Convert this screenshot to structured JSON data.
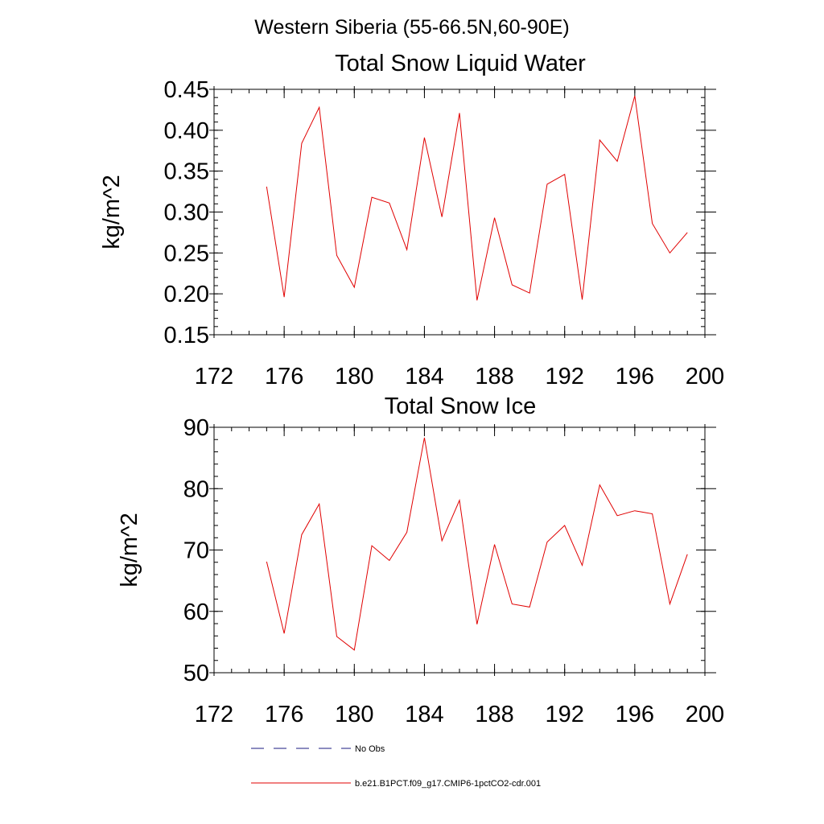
{
  "figure": {
    "suptitle": "Western Siberia (55-66.5N,60-90E)"
  },
  "legend": {
    "entries": [
      {
        "label": "No Obs",
        "style": "dashed",
        "color": "#1a1a80"
      },
      {
        "label": "b.e21.B1PCT.f09_g17.CMIP6-1pctCO2-cdr.001",
        "style": "solid",
        "color": "#e00000"
      }
    ]
  },
  "chart_data": [
    {
      "type": "line",
      "title": "Total Snow Liquid Water",
      "xlabel": "",
      "ylabel": "kg/m^2",
      "xlim": [
        172,
        200
      ],
      "ylim": [
        0.15,
        0.45
      ],
      "xticks": [
        172,
        176,
        180,
        184,
        188,
        192,
        196,
        200
      ],
      "xtick_labels": [
        "172",
        "176",
        "180",
        "184",
        "188",
        "192",
        "196",
        "200"
      ],
      "xminor": 1,
      "yticks": [
        0.15,
        0.2,
        0.25,
        0.3,
        0.35,
        0.4,
        0.45
      ],
      "ytick_labels": [
        "0.15",
        "0.20",
        "0.25",
        "0.30",
        "0.35",
        "0.40",
        "0.45"
      ],
      "yminor": 0.01,
      "grid": false,
      "x": [
        175,
        176,
        177,
        178,
        179,
        180,
        181,
        182,
        183,
        184,
        185,
        186,
        187,
        188,
        189,
        190,
        191,
        192,
        193,
        194,
        195,
        196,
        197,
        198,
        199
      ],
      "series": [
        {
          "name": "b.e21.B1PCT.f09_g17.CMIP6-1pctCO2-cdr.001",
          "color": "#e00000",
          "values": [
            0.331,
            0.196,
            0.384,
            0.428,
            0.247,
            0.208,
            0.318,
            0.311,
            0.254,
            0.391,
            0.294,
            0.421,
            0.192,
            0.293,
            0.211,
            0.201,
            0.334,
            0.346,
            0.193,
            0.388,
            0.362,
            0.442,
            0.286,
            0.25,
            0.275
          ]
        }
      ]
    },
    {
      "type": "line",
      "title": "Total Snow Ice",
      "xlabel": "",
      "ylabel": "kg/m^2",
      "xlim": [
        172,
        200
      ],
      "ylim": [
        50,
        90
      ],
      "xticks": [
        172,
        176,
        180,
        184,
        188,
        192,
        196,
        200
      ],
      "xtick_labels": [
        "172",
        "176",
        "180",
        "184",
        "188",
        "192",
        "196",
        "200"
      ],
      "xminor": 1,
      "yticks": [
        50,
        60,
        70,
        80,
        90
      ],
      "ytick_labels": [
        "50",
        "60",
        "70",
        "80",
        "90"
      ],
      "yminor": 2,
      "grid": false,
      "x": [
        175,
        176,
        177,
        178,
        179,
        180,
        181,
        182,
        183,
        184,
        185,
        186,
        187,
        188,
        189,
        190,
        191,
        192,
        193,
        194,
        195,
        196,
        197,
        198,
        199
      ],
      "series": [
        {
          "name": "b.e21.B1PCT.f09_g17.CMIP6-1pctCO2-cdr.001",
          "color": "#e00000",
          "values": [
            68.1,
            56.4,
            72.5,
            77.5,
            55.9,
            53.7,
            70.7,
            68.3,
            72.9,
            88.3,
            71.5,
            78.1,
            57.9,
            70.9,
            61.2,
            60.7,
            71.3,
            74.0,
            67.5,
            80.6,
            75.6,
            76.4,
            75.9,
            61.2,
            69.3
          ]
        }
      ]
    }
  ]
}
